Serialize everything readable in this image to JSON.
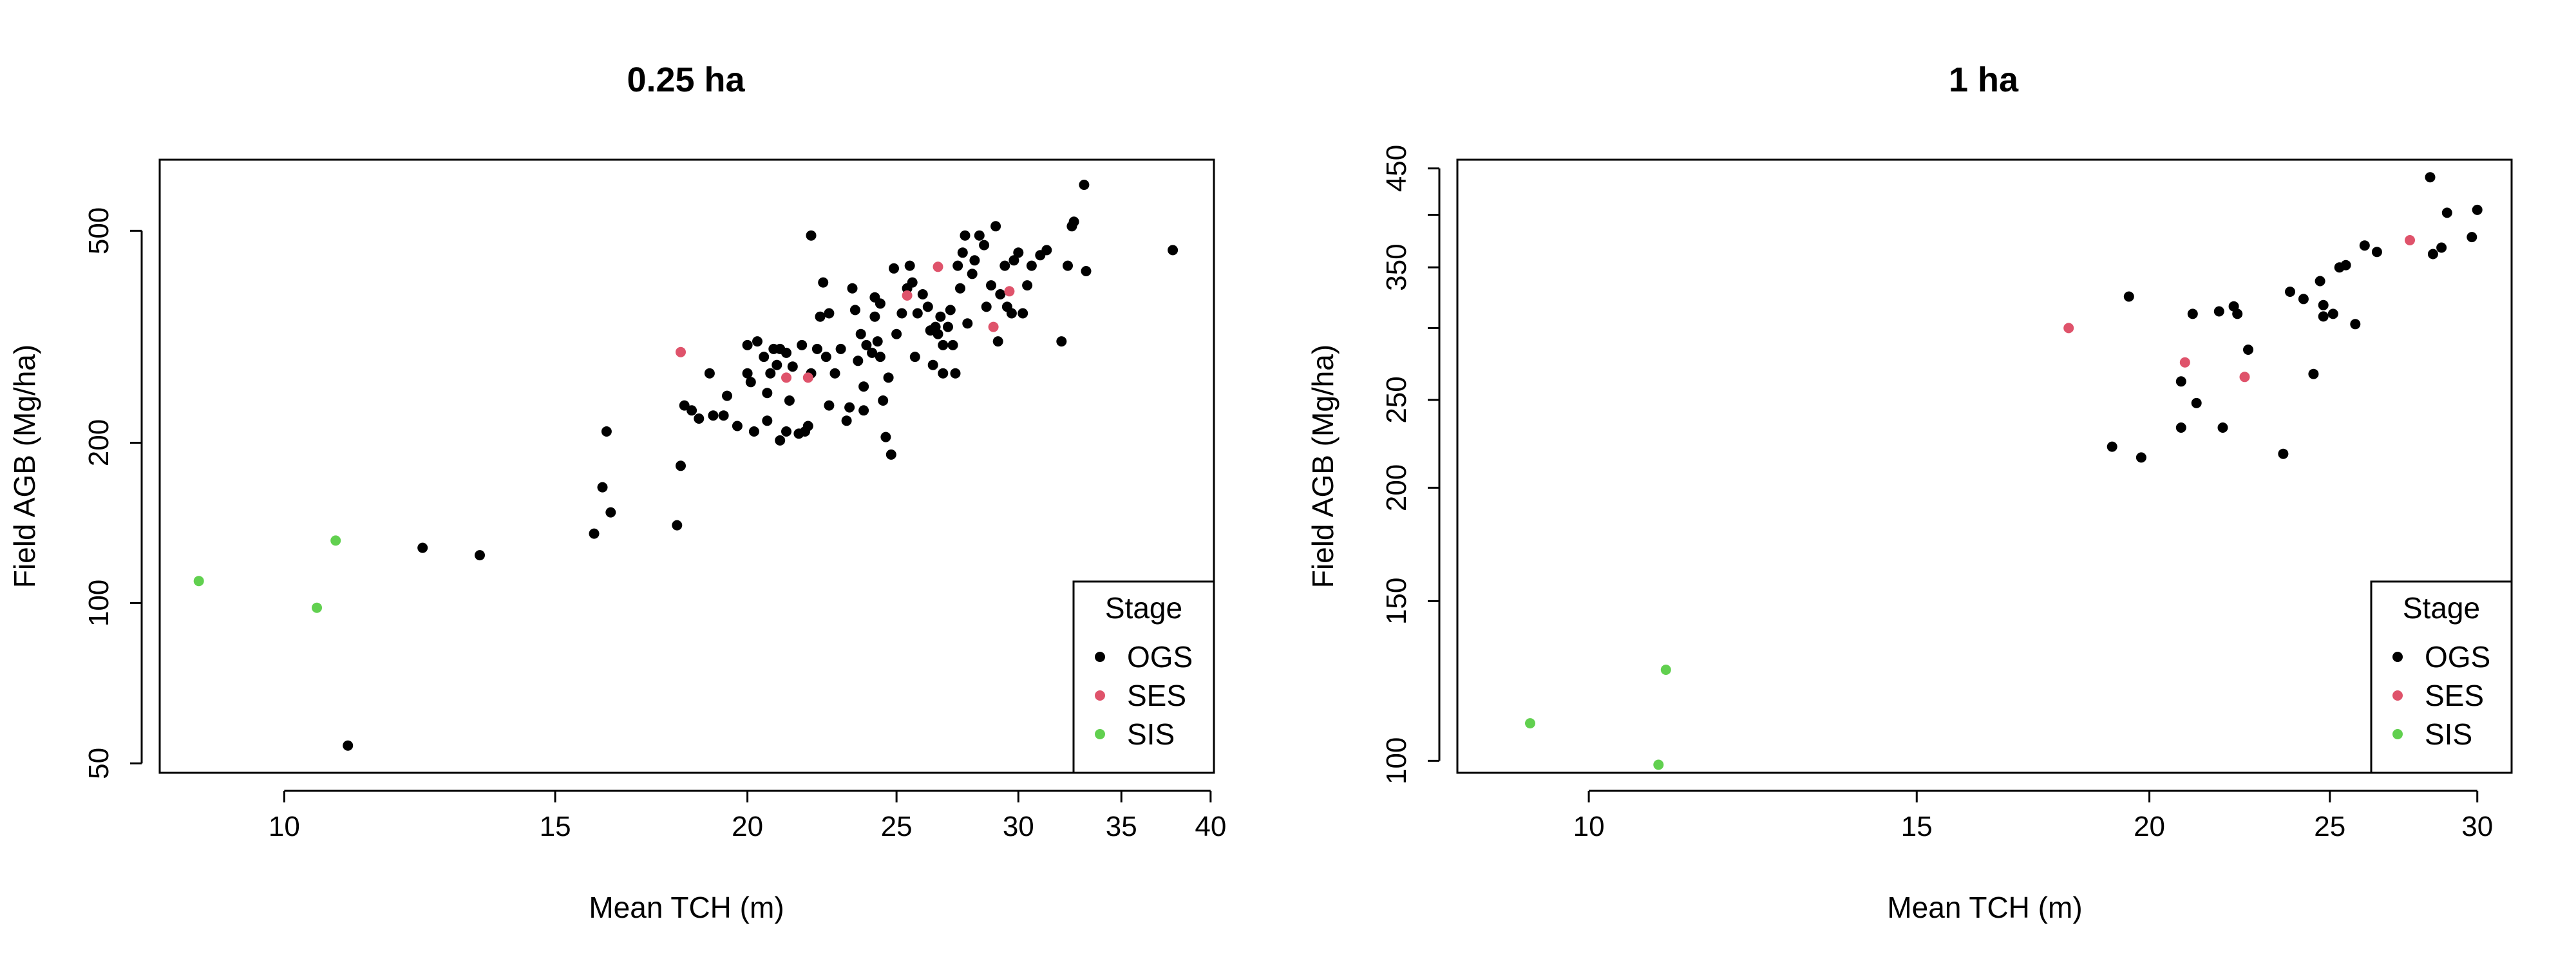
{
  "colors": {
    "OGS": "#000000",
    "SES": "#DF536B",
    "SIS": "#61D04F"
  },
  "chart_data": [
    {
      "type": "scatter",
      "title": "0.25 ha",
      "xlabel": "Mean TCH (m)",
      "ylabel": "Field AGB (Mg/ha)",
      "xscale": "log",
      "yscale": "log",
      "xlim": [
        8.3,
        40.2
      ],
      "ylim": [
        48,
        680
      ],
      "xticks": [
        10,
        15,
        20,
        25,
        30,
        35,
        40
      ],
      "yticks": [
        50,
        100,
        200,
        500
      ],
      "legend": {
        "title": "Stage",
        "position": "bottom-right",
        "entries": [
          "OGS",
          "SES",
          "SIS"
        ]
      },
      "series": [
        {
          "name": "OGS",
          "points": [
            [
              11.0,
              54
            ],
            [
              12.3,
              127
            ],
            [
              13.4,
              123
            ],
            [
              15.9,
              135
            ],
            [
              16.1,
              165
            ],
            [
              16.2,
              210
            ],
            [
              16.3,
              148
            ],
            [
              18.0,
              140
            ],
            [
              18.1,
              181
            ],
            [
              18.2,
              235
            ],
            [
              18.4,
              230
            ],
            [
              18.6,
              222
            ],
            [
              18.9,
              270
            ],
            [
              19.0,
              225
            ],
            [
              19.3,
              225
            ],
            [
              19.4,
              245
            ],
            [
              19.7,
              215
            ],
            [
              20.0,
              270
            ],
            [
              20.0,
              305
            ],
            [
              20.1,
              260
            ],
            [
              20.2,
              210
            ],
            [
              20.3,
              310
            ],
            [
              20.5,
              290
            ],
            [
              20.6,
              220
            ],
            [
              20.6,
              248
            ],
            [
              20.7,
              270
            ],
            [
              20.8,
              300
            ],
            [
              20.9,
              280
            ],
            [
              21.0,
              202
            ],
            [
              21.0,
              300
            ],
            [
              21.2,
              210
            ],
            [
              21.2,
              295
            ],
            [
              21.3,
              240
            ],
            [
              21.4,
              278
            ],
            [
              21.6,
              208
            ],
            [
              21.7,
              305
            ],
            [
              21.8,
              210
            ],
            [
              21.9,
              215
            ],
            [
              22.0,
              490
            ],
            [
              22.0,
              270
            ],
            [
              22.2,
              300
            ],
            [
              22.3,
              345
            ],
            [
              22.4,
              400
            ],
            [
              22.5,
              290
            ],
            [
              22.6,
              235
            ],
            [
              22.6,
              350
            ],
            [
              22.8,
              270
            ],
            [
              23.0,
              300
            ],
            [
              23.2,
              220
            ],
            [
              23.3,
              233
            ],
            [
              23.4,
              390
            ],
            [
              23.5,
              355
            ],
            [
              23.6,
              285
            ],
            [
              23.7,
              320
            ],
            [
              23.8,
              230
            ],
            [
              23.8,
              255
            ],
            [
              23.9,
              305
            ],
            [
              24.1,
              295
            ],
            [
              24.2,
              345
            ],
            [
              24.2,
              375
            ],
            [
              24.3,
              310
            ],
            [
              24.4,
              365
            ],
            [
              24.4,
              290
            ],
            [
              24.5,
              240
            ],
            [
              24.6,
              205
            ],
            [
              24.7,
              265
            ],
            [
              24.8,
              190
            ],
            [
              24.9,
              425
            ],
            [
              25.0,
              320
            ],
            [
              25.2,
              350
            ],
            [
              25.4,
              390
            ],
            [
              25.5,
              430
            ],
            [
              25.6,
              400
            ],
            [
              25.7,
              290
            ],
            [
              25.8,
              350
            ],
            [
              26.0,
              380
            ],
            [
              26.2,
              360
            ],
            [
              26.3,
              325
            ],
            [
              26.4,
              280
            ],
            [
              26.5,
              330
            ],
            [
              26.6,
              320
            ],
            [
              26.7,
              345
            ],
            [
              26.8,
              305
            ],
            [
              26.8,
              270
            ],
            [
              27.0,
              330
            ],
            [
              27.1,
              355
            ],
            [
              27.2,
              305
            ],
            [
              27.3,
              270
            ],
            [
              27.4,
              430
            ],
            [
              27.5,
              390
            ],
            [
              27.6,
              455
            ],
            [
              27.7,
              490
            ],
            [
              27.8,
              335
            ],
            [
              28.0,
              415
            ],
            [
              28.1,
              440
            ],
            [
              28.3,
              490
            ],
            [
              28.5,
              470
            ],
            [
              28.6,
              360
            ],
            [
              28.8,
              395
            ],
            [
              29.0,
              510
            ],
            [
              29.1,
              310
            ],
            [
              29.2,
              380
            ],
            [
              29.4,
              430
            ],
            [
              29.5,
              360
            ],
            [
              29.7,
              350
            ],
            [
              29.8,
              440
            ],
            [
              30.0,
              455
            ],
            [
              30.2,
              350
            ],
            [
              30.4,
              395
            ],
            [
              30.6,
              430
            ],
            [
              31.0,
              450
            ],
            [
              31.3,
              460
            ],
            [
              32.0,
              310
            ],
            [
              32.3,
              430
            ],
            [
              32.5,
              510
            ],
            [
              32.6,
              520
            ],
            [
              33.1,
              610
            ],
            [
              33.2,
              420
            ],
            [
              37.8,
              460
            ]
          ]
        },
        {
          "name": "SES",
          "points": [
            [
              18.1,
              296
            ],
            [
              21.2,
              265
            ],
            [
              21.9,
              265
            ],
            [
              25.4,
              378
            ],
            [
              26.6,
              428
            ],
            [
              28.9,
              330
            ],
            [
              29.6,
              385
            ]
          ]
        },
        {
          "name": "SIS",
          "points": [
            [
              8.8,
              110
            ],
            [
              10.5,
              98
            ],
            [
              10.8,
              131
            ]
          ]
        }
      ]
    },
    {
      "type": "scatter",
      "title": "1 ha",
      "xlabel": "Mean TCH (m)",
      "ylabel": "Field AGB (Mg/ha)",
      "xscale": "log",
      "yscale": "log",
      "xlim": [
        8.5,
        31.3
      ],
      "ylim": [
        97,
        460
      ],
      "xticks": [
        10,
        15,
        20,
        25,
        30
      ],
      "yticks": [
        100,
        150,
        200,
        250,
        300,
        350,
        400,
        450
      ],
      "ytick_labels": [
        "100",
        "150",
        "200",
        "250",
        "",
        "350",
        "",
        "450"
      ],
      "legend": {
        "title": "Stage",
        "position": "bottom-right",
        "entries": [
          "OGS",
          "SES",
          "SIS"
        ]
      },
      "series": [
        {
          "name": "OGS",
          "points": [
            [
              19.1,
              222
            ],
            [
              19.5,
              325
            ],
            [
              19.8,
              216
            ],
            [
              20.8,
              262
            ],
            [
              20.8,
              233
            ],
            [
              21.1,
              311
            ],
            [
              21.2,
              248
            ],
            [
              21.8,
              313
            ],
            [
              21.9,
              233
            ],
            [
              22.2,
              317
            ],
            [
              22.3,
              311
            ],
            [
              22.6,
              284
            ],
            [
              23.6,
              218
            ],
            [
              23.8,
              329
            ],
            [
              24.2,
              323
            ],
            [
              24.5,
              267
            ],
            [
              24.7,
              338
            ],
            [
              24.8,
              309
            ],
            [
              24.8,
              318
            ],
            [
              25.1,
              311
            ],
            [
              25.3,
              350
            ],
            [
              25.5,
              352
            ],
            [
              25.8,
              303
            ],
            [
              26.1,
              370
            ],
            [
              26.5,
              364
            ],
            [
              28.3,
              440
            ],
            [
              28.4,
              362
            ],
            [
              28.7,
              368
            ],
            [
              28.9,
              402
            ],
            [
              29.8,
              378
            ],
            [
              30.0,
              405
            ]
          ]
        },
        {
          "name": "SES",
          "points": [
            [
              18.1,
              300
            ],
            [
              20.9,
              275
            ],
            [
              22.5,
              265
            ],
            [
              27.6,
              375
            ]
          ]
        },
        {
          "name": "SIS",
          "points": [
            [
              9.3,
              110
            ],
            [
              10.9,
              99
            ],
            [
              11.0,
              126
            ]
          ]
        }
      ]
    }
  ]
}
